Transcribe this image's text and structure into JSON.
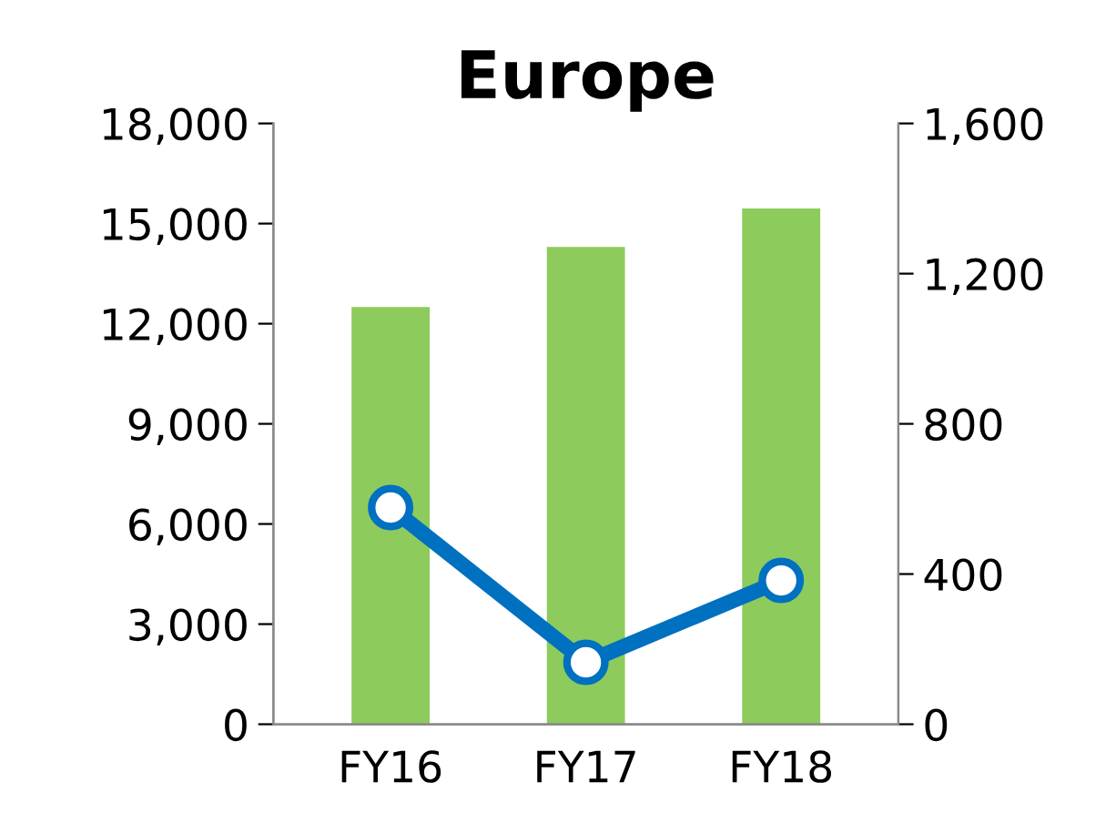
{
  "chart_data": {
    "type": "bar",
    "title": "Europe",
    "categories": [
      "FY16",
      "FY17",
      "FY18"
    ],
    "series": [
      {
        "color": "#8dcb5c",
        "values": [
          12500,
          14300,
          15450
        ]
      },
      {
        "type": "line",
        "axis": "y2",
        "color": "#0070c0",
        "marker": "circle",
        "values": [
          577,
          165,
          383
        ]
      }
    ],
    "ylim": [
      0,
      18000
    ],
    "yticks": [
      {
        "value": 0,
        "label": "0"
      },
      {
        "value": 3000,
        "label": "3,000"
      },
      {
        "value": 6000,
        "label": "6,000"
      },
      {
        "value": 9000,
        "label": "9,000"
      },
      {
        "value": 12000,
        "label": "12,000"
      },
      {
        "value": 15000,
        "label": "15,000"
      },
      {
        "value": 18000,
        "label": "18,000"
      }
    ],
    "y2lim": [
      0,
      1600
    ],
    "y2ticks": [
      {
        "value": 0,
        "label": "0"
      },
      {
        "value": 400,
        "label": "400"
      },
      {
        "value": 800,
        "label": "800"
      },
      {
        "value": 1200,
        "label": "1,200"
      },
      {
        "value": 1600,
        "label": "1,600"
      }
    ],
    "grid": false,
    "legend": false
  }
}
